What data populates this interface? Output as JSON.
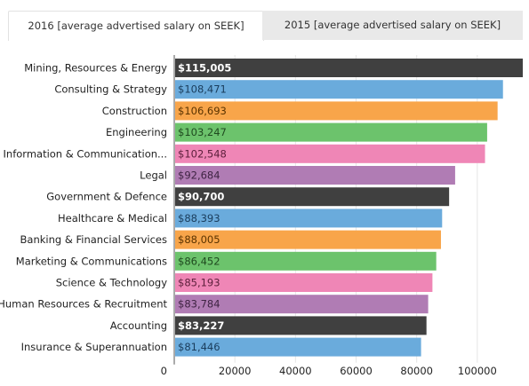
{
  "tabs": [
    {
      "label": "2016 [average advertised salary on SEEK]",
      "active": true
    },
    {
      "label": "2015 [average advertised salary on SEEK]",
      "active": false
    }
  ],
  "colors": {
    "bg": "#ffffff",
    "grid": "#e6e6e6",
    "label": "#222222",
    "tab_active_bg": "#ffffff",
    "tab_inactive_bg": "#e9e9e9"
  },
  "chart_data": {
    "type": "bar",
    "orientation": "horizontal",
    "categories": [
      "Mining, Resources & Energy",
      "Consulting & Strategy",
      "Construction",
      "Engineering",
      "Information & Communication...",
      "Legal",
      "Government & Defence",
      "Healthcare & Medical",
      "Banking & Financial Services",
      "Marketing & Communications",
      "Science & Technology",
      "Human Resources & Recruitment",
      "Accounting",
      "Insurance & Superannuation"
    ],
    "values": [
      115005,
      108471,
      106693,
      103247,
      102548,
      92684,
      90700,
      88393,
      88005,
      86452,
      85193,
      83784,
      83227,
      81446
    ],
    "value_labels": [
      "$115,005",
      "$108,471",
      "$106,693",
      "$103,247",
      "$102,548",
      "$92,684",
      "$90,700",
      "$88,393",
      "$88,005",
      "$86,452",
      "$85,193",
      "$83,784",
      "$83,227",
      "$81,446"
    ],
    "bar_colors": [
      "#404040",
      "#6aabdc",
      "#f8a54a",
      "#6cc36c",
      "#ef86b6",
      "#b07cb4",
      "#404040",
      "#6aabdc",
      "#f8a54a",
      "#6cc36c",
      "#ef86b6",
      "#b07cb4",
      "#404040",
      "#6aabdc"
    ],
    "label_colors": [
      "#ffffff",
      "#1a3d5c",
      "#5a3300",
      "#1f4a1f",
      "#5c1f3b",
      "#3f2443",
      "#ffffff",
      "#1a3d5c",
      "#5a3300",
      "#1f4a1f",
      "#5c1f3b",
      "#3f2443",
      "#ffffff",
      "#1a3d5c"
    ],
    "x_ticks": [
      0,
      20000,
      40000,
      60000,
      80000,
      100000
    ],
    "x_tick_labels": [
      "0",
      "20000",
      "40000",
      "60000",
      "80000",
      "100000"
    ],
    "xlim": [
      0,
      115005
    ],
    "grid": true,
    "legend": false
  }
}
